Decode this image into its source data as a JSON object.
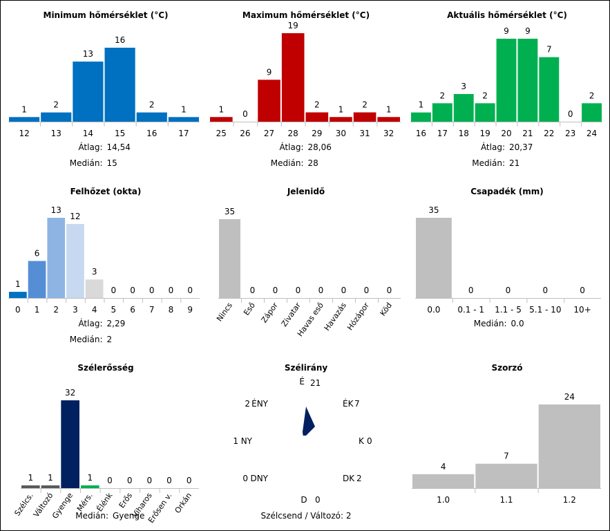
{
  "colors": {
    "blue": "#0070C0",
    "red": "#C00000",
    "green": "#00B050",
    "gray": "#BFBFBF",
    "navy": "#002060",
    "darkgray": "#595959"
  },
  "labels": {
    "atlag": "Átlag:",
    "median": "Medián:"
  },
  "chart_data": [
    {
      "id": "min",
      "type": "bar",
      "title": "Minimum hőmérséklet (°C)",
      "categories": [
        "12",
        "13",
        "14",
        "15",
        "16",
        "17"
      ],
      "values": [
        1,
        2,
        13,
        16,
        2,
        1
      ],
      "colors": [
        "#0070C0",
        "#0070C0",
        "#0070C0",
        "#0070C0",
        "#0070C0",
        "#0070C0"
      ],
      "stats": {
        "mean": "14,54",
        "median": "15"
      }
    },
    {
      "id": "max",
      "type": "bar",
      "title": "Maximum hőmérséklet (°C)",
      "categories": [
        "25",
        "26",
        "27",
        "28",
        "29",
        "30",
        "31",
        "32"
      ],
      "values": [
        1,
        0,
        9,
        19,
        2,
        1,
        2,
        1
      ],
      "colors": [
        "#C00000",
        "#C00000",
        "#C00000",
        "#C00000",
        "#C00000",
        "#C00000",
        "#C00000",
        "#C00000"
      ],
      "stats": {
        "mean": "28,06",
        "median": "28"
      }
    },
    {
      "id": "cur",
      "type": "bar",
      "title": "Aktuális hőmérséklet (°C)",
      "categories": [
        "16",
        "17",
        "18",
        "19",
        "20",
        "21",
        "22",
        "23",
        "24"
      ],
      "values": [
        1,
        2,
        3,
        2,
        9,
        9,
        7,
        0,
        2
      ],
      "colors": [
        "#00B050",
        "#00B050",
        "#00B050",
        "#00B050",
        "#00B050",
        "#00B050",
        "#00B050",
        "#00B050",
        "#00B050"
      ],
      "stats": {
        "mean": "20,37",
        "median": "21"
      }
    },
    {
      "id": "cloud",
      "type": "bar",
      "title": "Felhőzet (okta)",
      "categories": [
        "0",
        "1",
        "2",
        "3",
        "4",
        "5",
        "6",
        "7",
        "8",
        "9"
      ],
      "values": [
        1,
        6,
        13,
        12,
        3,
        0,
        0,
        0,
        0,
        0
      ],
      "colors": [
        "#0070C0",
        "#558ED5",
        "#8EB4E3",
        "#C6D9F1",
        "#D9D9D9",
        "#D9D9D9",
        "#D9D9D9",
        "#D9D9D9",
        "#D9D9D9",
        "#D9D9D9"
      ],
      "stats": {
        "mean": "2,29",
        "median": "2"
      }
    },
    {
      "id": "wx",
      "type": "bar",
      "title": "Jelenidő",
      "categories": [
        "Nincs",
        "Eső",
        "Zápor",
        "Zivatar",
        "Havas eső",
        "Havazás",
        "Hózápor",
        "Köd"
      ],
      "values": [
        35,
        0,
        0,
        0,
        0,
        0,
        0,
        0
      ],
      "colors": [
        "#BFBFBF",
        "#BFBFBF",
        "#BFBFBF",
        "#BFBFBF",
        "#BFBFBF",
        "#BFBFBF",
        "#BFBFBF",
        "#BFBFBF"
      ],
      "stats": {}
    },
    {
      "id": "prec",
      "type": "bar",
      "title": "Csapadék (mm)",
      "categories": [
        "0.0",
        "0.1 - 1",
        "1.1 - 5",
        "5.1 - 10",
        "10+"
      ],
      "values": [
        35,
        0,
        0,
        0,
        0
      ],
      "colors": [
        "#BFBFBF",
        "#BFBFBF",
        "#BFBFBF",
        "#BFBFBF",
        "#BFBFBF"
      ],
      "stats": {
        "median": "0.0"
      }
    },
    {
      "id": "wind",
      "type": "bar",
      "title": "Szélerősség",
      "categories": [
        "Szélcs.",
        "Változó",
        "Gyenge",
        "Mérs.",
        "Élénk",
        "Erős",
        "Viharos",
        "Erősen v.",
        "Orkán"
      ],
      "values": [
        1,
        1,
        32,
        1,
        0,
        0,
        0,
        0,
        0
      ],
      "colors": [
        "#595959",
        "#595959",
        "#002060",
        "#00B050",
        "#BFBFBF",
        "#BFBFBF",
        "#BFBFBF",
        "#BFBFBF",
        "#BFBFBF"
      ],
      "stats": {
        "median": "Gyenge"
      }
    },
    {
      "id": "dir",
      "type": "rose",
      "title": "Szélirány",
      "directions": [
        {
          "label": "É",
          "value": 21
        },
        {
          "label": "ÉK",
          "value": 7
        },
        {
          "label": "K",
          "value": 0
        },
        {
          "label": "DK",
          "value": 2
        },
        {
          "label": "D",
          "value": 0
        },
        {
          "label": "DNY",
          "value": 0
        },
        {
          "label": "NY",
          "value": 1
        },
        {
          "label": "ÉNY",
          "value": 2
        }
      ],
      "note": "Szélcsend / Változó: 2"
    },
    {
      "id": "mult",
      "type": "bar",
      "title": "Szorzó",
      "categories": [
        "1.0",
        "1.1",
        "1.2"
      ],
      "values": [
        4,
        7,
        24
      ],
      "colors": [
        "#BFBFBF",
        "#BFBFBF",
        "#BFBFBF"
      ],
      "stats": {}
    }
  ]
}
